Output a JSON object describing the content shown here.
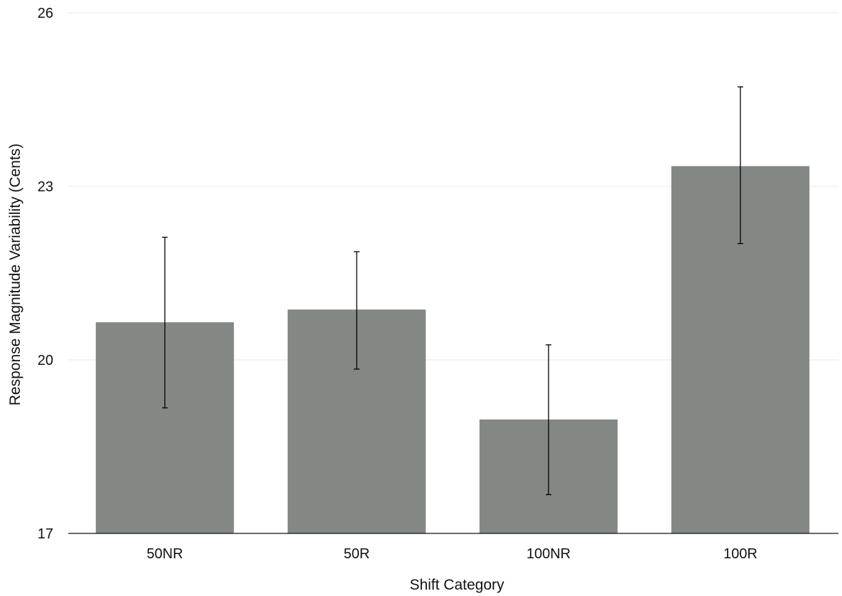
{
  "chart_data": {
    "type": "bar",
    "categories": [
      "50NR",
      "50R",
      "100NR",
      "100R"
    ],
    "values": [
      20.65,
      20.87,
      18.97,
      23.35
    ],
    "error_low": [
      19.17,
      19.84,
      17.67,
      22.01
    ],
    "error_high": [
      22.12,
      21.87,
      20.26,
      24.72
    ],
    "xlabel": "Shift Category",
    "ylabel": "Response Magnitude Variability (Cents)",
    "ylim": [
      17,
      26
    ],
    "yticks": [
      17,
      20,
      23,
      26
    ],
    "ytick_labels": [
      "17",
      "20",
      "23",
      "26"
    ],
    "grid": true,
    "bar_color": "#838885"
  }
}
